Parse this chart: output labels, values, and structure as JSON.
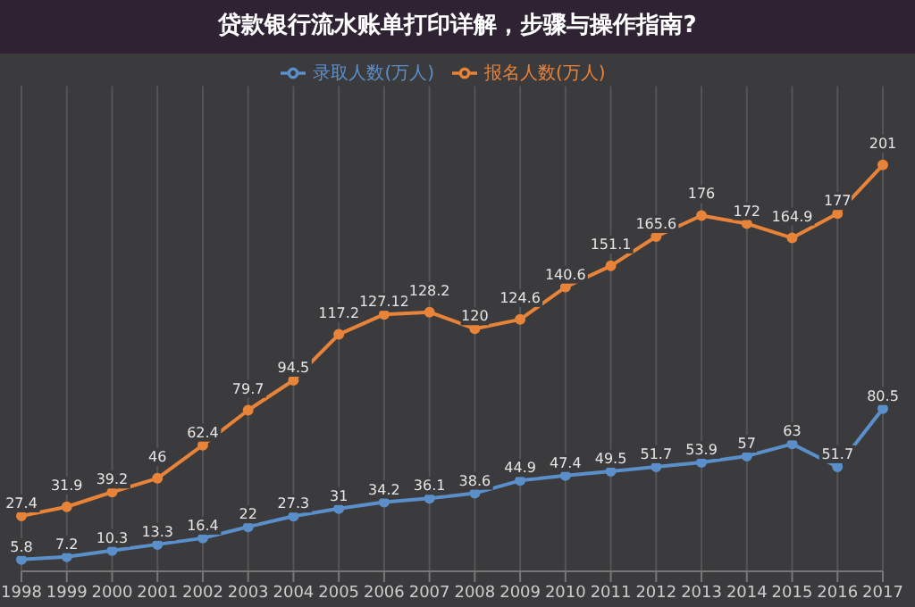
{
  "chart_data": {
    "type": "line",
    "title": "贷款银行流水账单打印详解，步骤与操作指南?",
    "categories": [
      "1998",
      "1999",
      "2000",
      "2001",
      "2002",
      "2003",
      "2004",
      "2005",
      "2006",
      "2007",
      "2008",
      "2009",
      "2010",
      "2011",
      "2012",
      "2013",
      "2014",
      "2015",
      "2016",
      "2017"
    ],
    "series": [
      {
        "name": "报名人数(万人)",
        "color": "#e8833a",
        "values": [
          27.4,
          31.9,
          39.2,
          46,
          62.4,
          79.7,
          94.5,
          117.2,
          127.12,
          128.2,
          120,
          124.6,
          140.6,
          151.1,
          165.6,
          176,
          172,
          164.9,
          177,
          201
        ]
      },
      {
        "name": "录取人数(万人)",
        "color": "#5b8fc9",
        "values": [
          5.8,
          7.2,
          10.3,
          13.3,
          16.4,
          22,
          27.3,
          31,
          34.2,
          36.1,
          38.6,
          44.9,
          47.4,
          49.5,
          51.7,
          53.9,
          57,
          63,
          51.7,
          80.5
        ]
      }
    ],
    "ylim": [
      0,
      240
    ],
    "tick_labels": "x",
    "grid": "x",
    "legend": "top",
    "data_labels": true,
    "marker": "circle",
    "line_style": "solid"
  }
}
